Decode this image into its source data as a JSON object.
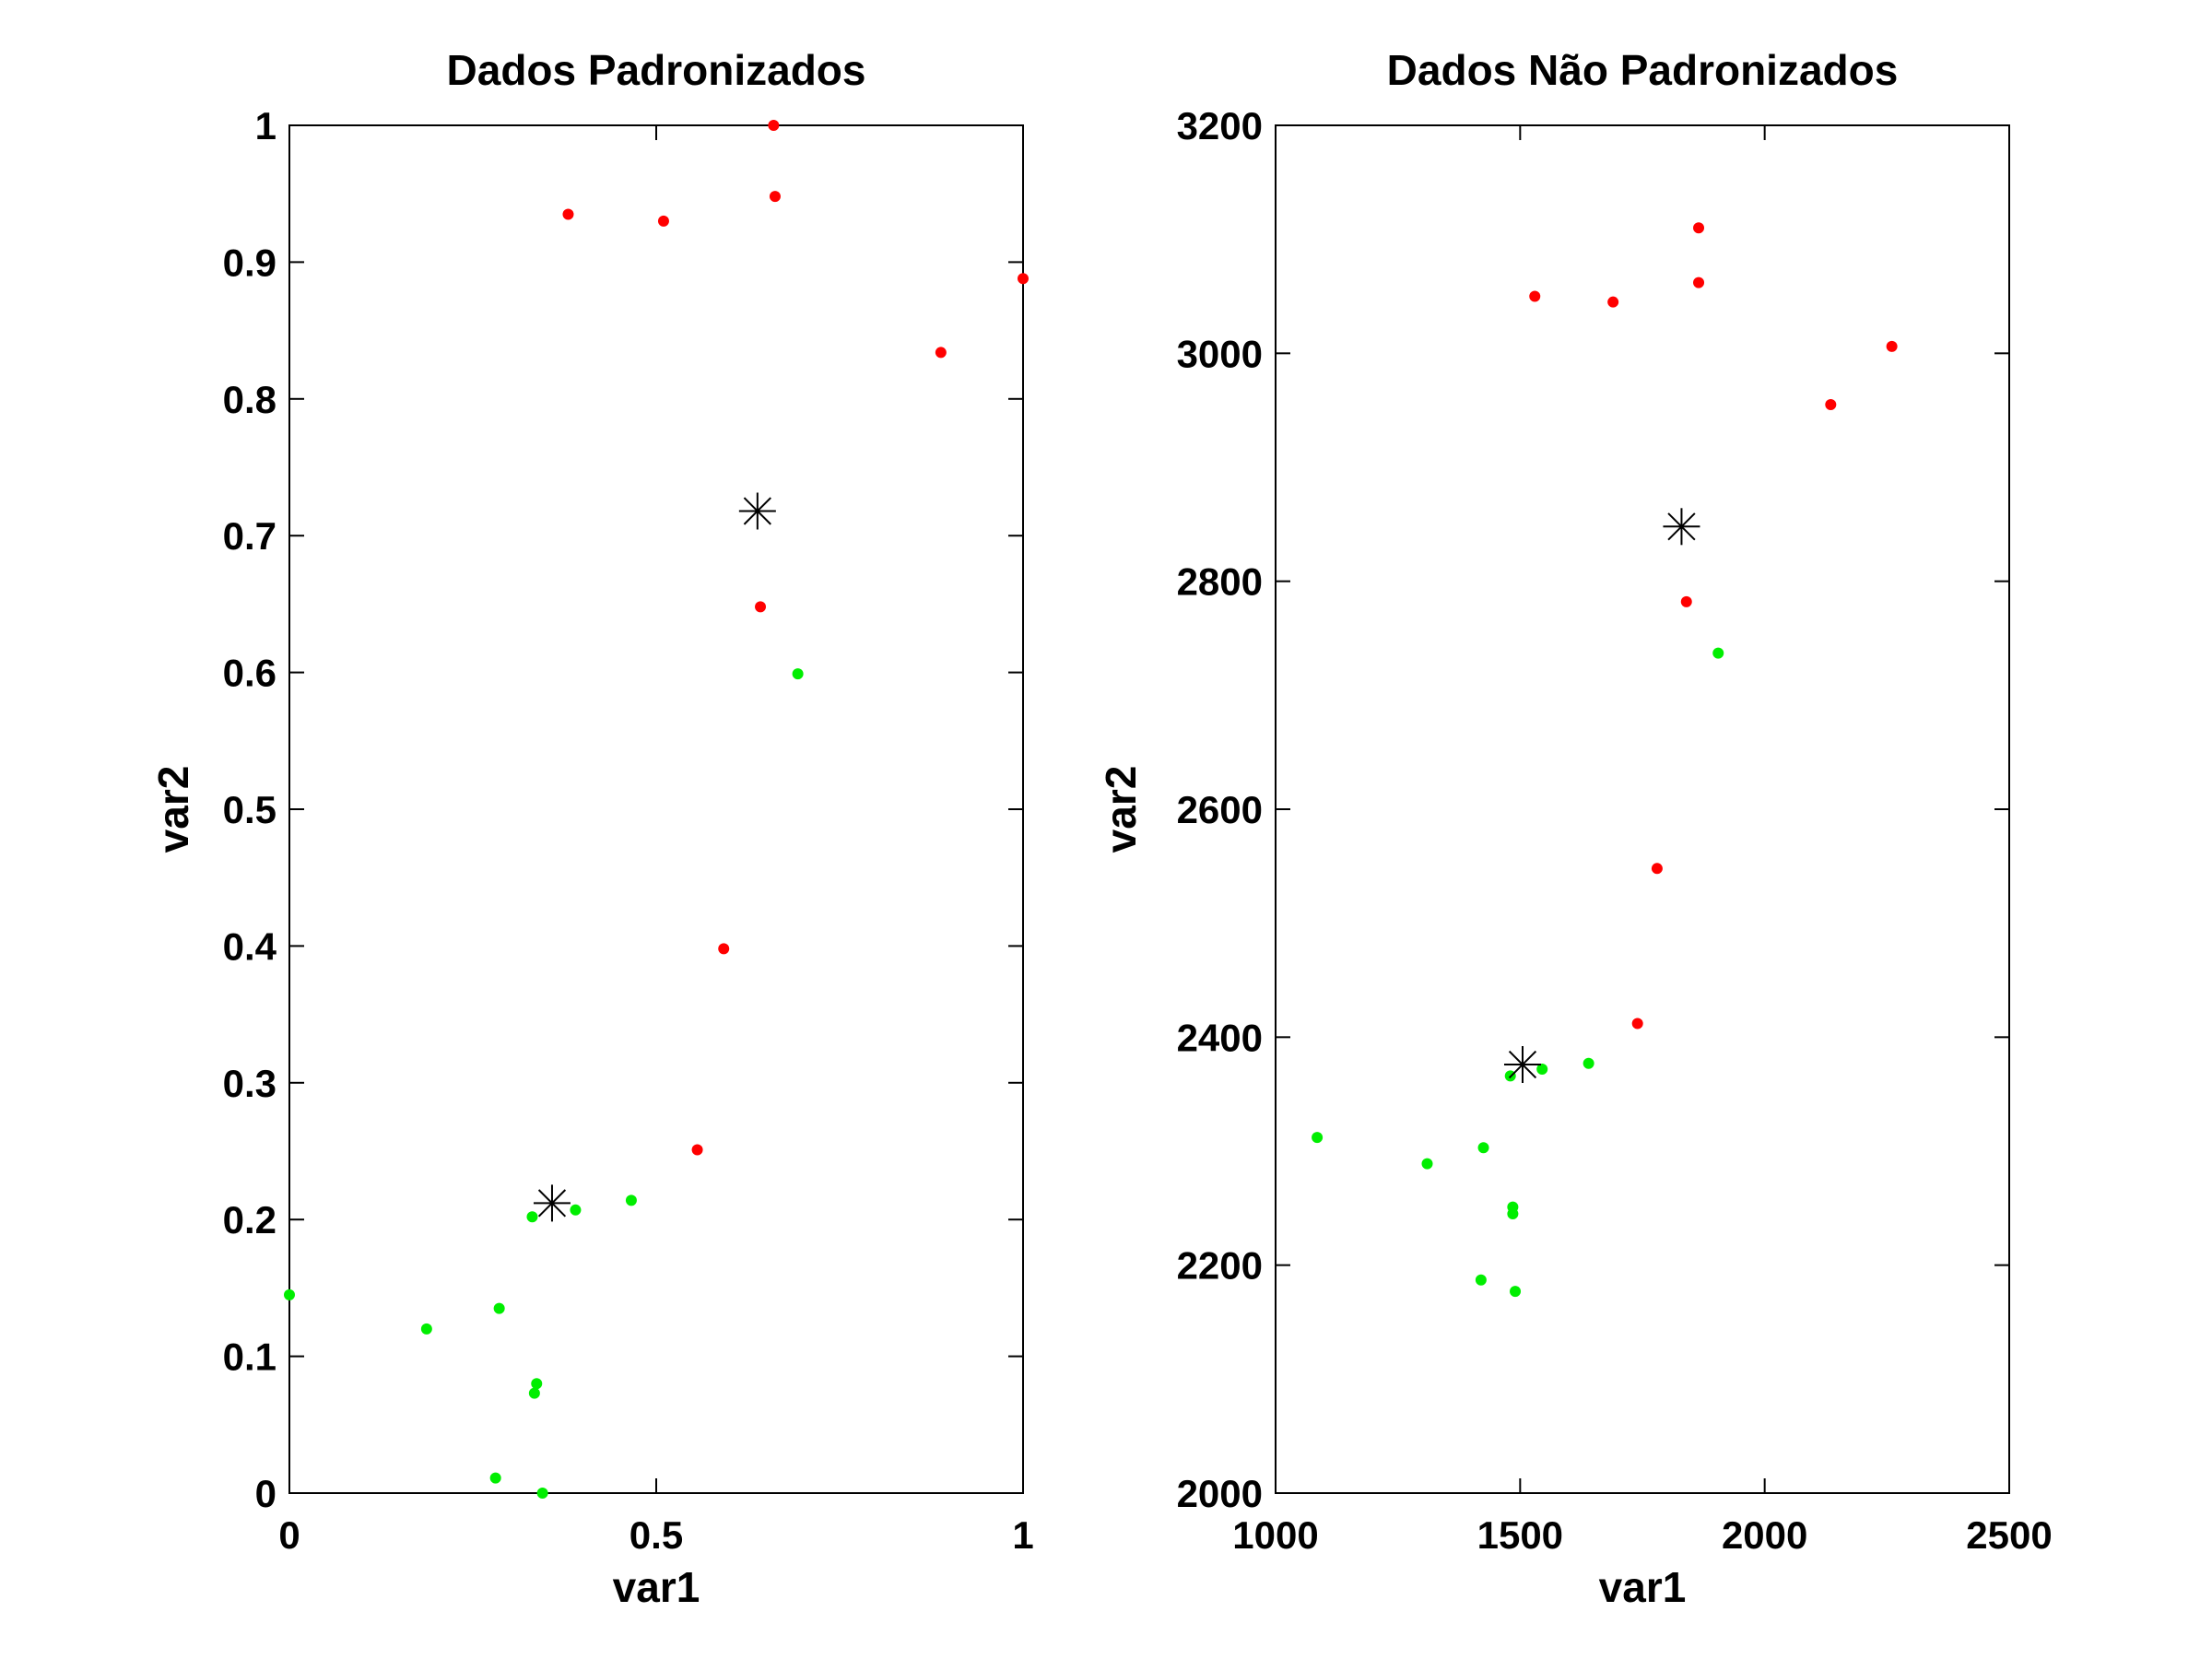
{
  "chart_data": [
    {
      "type": "scatter",
      "title": "Dados Padronizados",
      "xlabel": "var1",
      "ylabel": "var2",
      "xlim": [
        0,
        1
      ],
      "ylim": [
        0,
        1
      ],
      "xticks": [
        0,
        0.5,
        1
      ],
      "xtick_labels": [
        "0",
        "0.5",
        "1"
      ],
      "yticks": [
        0,
        0.1,
        0.2,
        0.3,
        0.4,
        0.5,
        0.6,
        0.7,
        0.8,
        0.9,
        1
      ],
      "ytick_labels": [
        "0",
        "0.1",
        "0.2",
        "0.3",
        "0.4",
        "0.5",
        "0.6",
        "0.7",
        "0.8",
        "0.9",
        "1"
      ],
      "grid": false,
      "series": [
        {
          "color": "#ff0000",
          "marker": "dot",
          "x": [
            0.66,
            0.662,
            0.38,
            0.51,
            1.0,
            0.888,
            0.642,
            0.592,
            0.556
          ],
          "y": [
            1.0,
            0.948,
            0.935,
            0.93,
            0.888,
            0.834,
            0.648,
            0.398,
            0.251
          ]
        },
        {
          "color": "#00ee00",
          "marker": "dot",
          "x": [
            0.693,
            0.466,
            0.39,
            0.331,
            0.0,
            0.187,
            0.286,
            0.337,
            0.334,
            0.281,
            0.345
          ],
          "y": [
            0.599,
            0.214,
            0.207,
            0.202,
            0.145,
            0.12,
            0.135,
            0.08,
            0.073,
            0.011,
            0.0
          ]
        },
        {
          "color": "#000000",
          "marker": "asterisk",
          "x": [
            0.638,
            0.358
          ],
          "y": [
            0.718,
            0.212
          ]
        }
      ]
    },
    {
      "type": "scatter",
      "title": "Dados Não Padronizados",
      "xlabel": "var1",
      "ylabel": "var2",
      "xlim": [
        1000,
        2500
      ],
      "ylim": [
        2000,
        3200
      ],
      "xticks": [
        1000,
        1500,
        2000,
        2500
      ],
      "xtick_labels": [
        "1000",
        "1500",
        "2000",
        "2500"
      ],
      "yticks": [
        2000,
        2200,
        2400,
        2600,
        2800,
        3000,
        3200
      ],
      "ytick_labels": [
        "2000",
        "2200",
        "2400",
        "2600",
        "2800",
        "3000",
        "3200"
      ],
      "grid": false,
      "series": [
        {
          "color": "#ff0000",
          "marker": "dot",
          "x": [
            1865,
            1865,
            1530,
            1690,
            2260,
            2135,
            1840,
            1780,
            1740
          ],
          "y": [
            3110,
            3062,
            3050,
            3045,
            3006,
            2955,
            2782,
            2548,
            2412
          ]
        },
        {
          "color": "#00ee00",
          "marker": "dot",
          "x": [
            1905,
            1640,
            1545,
            1480,
            1085,
            1310,
            1425,
            1485,
            1485,
            1420,
            1490
          ],
          "y": [
            2737,
            2377,
            2372,
            2366,
            2312,
            2289,
            2303,
            2251,
            2245,
            2187,
            2177
          ]
        },
        {
          "color": "#000000",
          "marker": "asterisk",
          "x": [
            1830,
            1505
          ],
          "y": [
            2848,
            2376
          ]
        }
      ]
    }
  ]
}
